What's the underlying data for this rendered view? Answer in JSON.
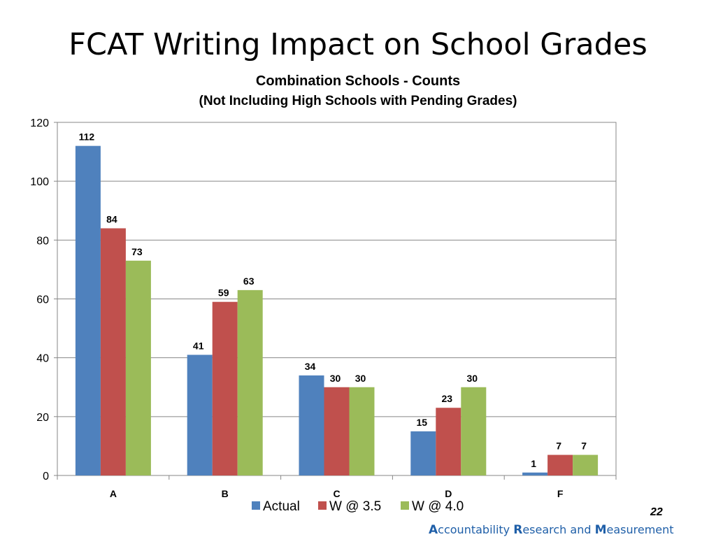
{
  "slide": {
    "title": "FCAT Writing Impact on School Grades",
    "page_number": "22",
    "footer": {
      "w1_cap": "A",
      "w1_rest": "ccountability ",
      "w2_cap": "R",
      "w2_rest": "esearch and ",
      "w3_cap": "M",
      "w3_rest": "easurement"
    }
  },
  "chart_data": {
    "type": "bar",
    "title": "Combination Schools - Counts",
    "subtitle": "(Not Including High Schools with Pending Grades)",
    "categories": [
      "A",
      "B",
      "C",
      "D",
      "F"
    ],
    "series": [
      {
        "name": "Actual",
        "color": "#4f81bd",
        "values": [
          112,
          41,
          34,
          15,
          1
        ]
      },
      {
        "name": "W @ 3.5",
        "color": "#c0504d",
        "values": [
          84,
          59,
          30,
          23,
          7
        ]
      },
      {
        "name": "W @ 4.0",
        "color": "#9bbb59",
        "values": [
          73,
          63,
          30,
          30,
          7
        ]
      }
    ],
    "ylim": [
      0,
      120
    ],
    "yticks": [
      0,
      20,
      40,
      60,
      80,
      100,
      120
    ],
    "grid": true,
    "legend": "bottom",
    "data_labels": [
      [
        "112",
        "84",
        "73"
      ],
      [
        "41",
        "59",
        "63"
      ],
      [
        "34",
        "30",
        "30"
      ],
      [
        "15",
        "23",
        "30"
      ],
      [
        "1",
        "7",
        "7"
      ]
    ]
  }
}
